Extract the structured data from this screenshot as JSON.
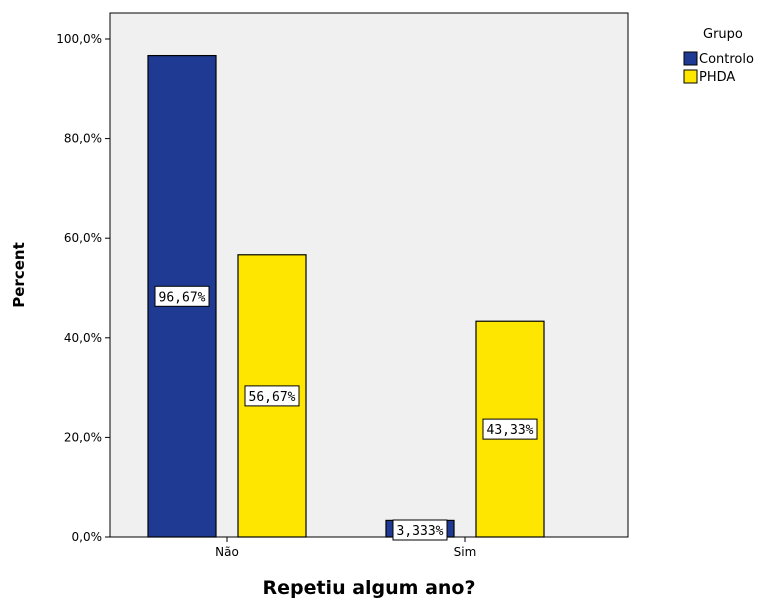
{
  "chart_data": {
    "type": "bar",
    "title": "",
    "xlabel": "Repetiu algum ano?",
    "ylabel": "Percent",
    "categories": [
      "Não",
      "Sim"
    ],
    "series": [
      {
        "name": "Controlo",
        "values": [
          96.67,
          3.333
        ],
        "labels": [
          "96,67%",
          "3,333%"
        ],
        "color": "#1f3a93"
      },
      {
        "name": "PHDA",
        "values": [
          56.67,
          43.33
        ],
        "labels": [
          "56,67%",
          "43,33%"
        ],
        "color": "#ffe600"
      }
    ],
    "ylim": [
      0,
      105
    ],
    "yticks": [
      0,
      20,
      40,
      60,
      80,
      100
    ],
    "ytick_labels": [
      "0,0%",
      "20,0%",
      "40,0%",
      "60,0%",
      "80,0%",
      "100,0%"
    ],
    "legend": {
      "title": "Grupo",
      "placement": "top-right"
    },
    "grid": false,
    "plot_background": "#f0f0f0"
  }
}
